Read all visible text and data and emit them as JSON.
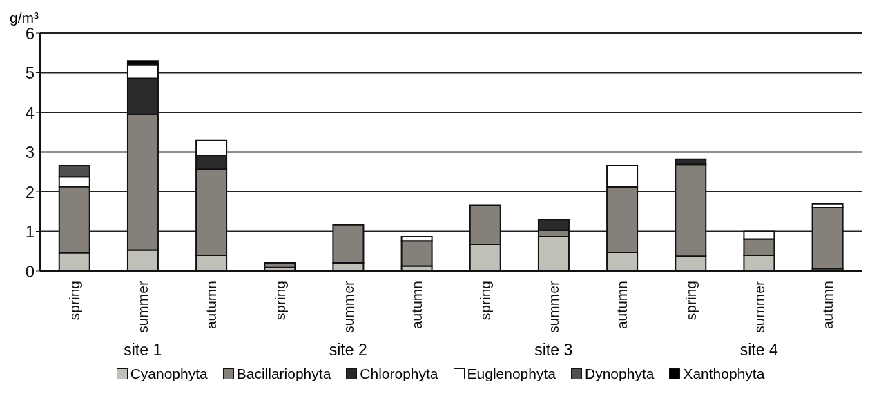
{
  "chart_data": {
    "type": "bar",
    "stacked": true,
    "ylabel": "g/m³",
    "categories": [
      "spring",
      "summer",
      "autumn",
      "spring",
      "summer",
      "autumn",
      "spring",
      "summer",
      "autumn",
      "spring",
      "summer",
      "autumn"
    ],
    "annotations": [
      "site 1",
      "site 2",
      "site 3",
      "site 4"
    ],
    "series": [
      {
        "name": "Cyanophyta",
        "color": "#c0bfb8",
        "values": [
          0.46,
          0.53,
          0.4,
          0.09,
          0.21,
          0.13,
          0.68,
          0.87,
          0.47,
          0.38,
          0.4,
          0.06
        ]
      },
      {
        "name": "Bacillariophyta",
        "color": "#858079",
        "values": [
          1.67,
          3.42,
          2.17,
          0.12,
          0.96,
          0.63,
          0.98,
          0.16,
          1.65,
          2.31,
          0.41,
          1.54
        ]
      },
      {
        "name": "Chlorophyta",
        "color": "#2a2a2a",
        "values": [
          null,
          0.91,
          0.35,
          null,
          null,
          null,
          null,
          0.27,
          null,
          0.13,
          null,
          null
        ]
      },
      {
        "name": "Euglenophyta",
        "color": "#ffffff",
        "values": [
          0.25,
          0.35,
          0.37,
          null,
          null,
          0.11,
          null,
          null,
          0.54,
          null,
          0.19,
          0.09
        ]
      },
      {
        "name": "Dynophyta",
        "color": "#505050",
        "values": [
          0.28,
          null,
          null,
          null,
          null,
          null,
          null,
          null,
          null,
          null,
          null,
          null
        ]
      },
      {
        "name": "Xanthophyta",
        "color": "#000000",
        "values": [
          null,
          0.09,
          null,
          null,
          null,
          null,
          null,
          null,
          null,
          null,
          null,
          null
        ]
      }
    ],
    "ylim": [
      0,
      6
    ],
    "yticks": [
      0,
      1,
      2,
      3,
      4,
      5,
      6
    ],
    "grid": "y",
    "legend": "bottom"
  }
}
